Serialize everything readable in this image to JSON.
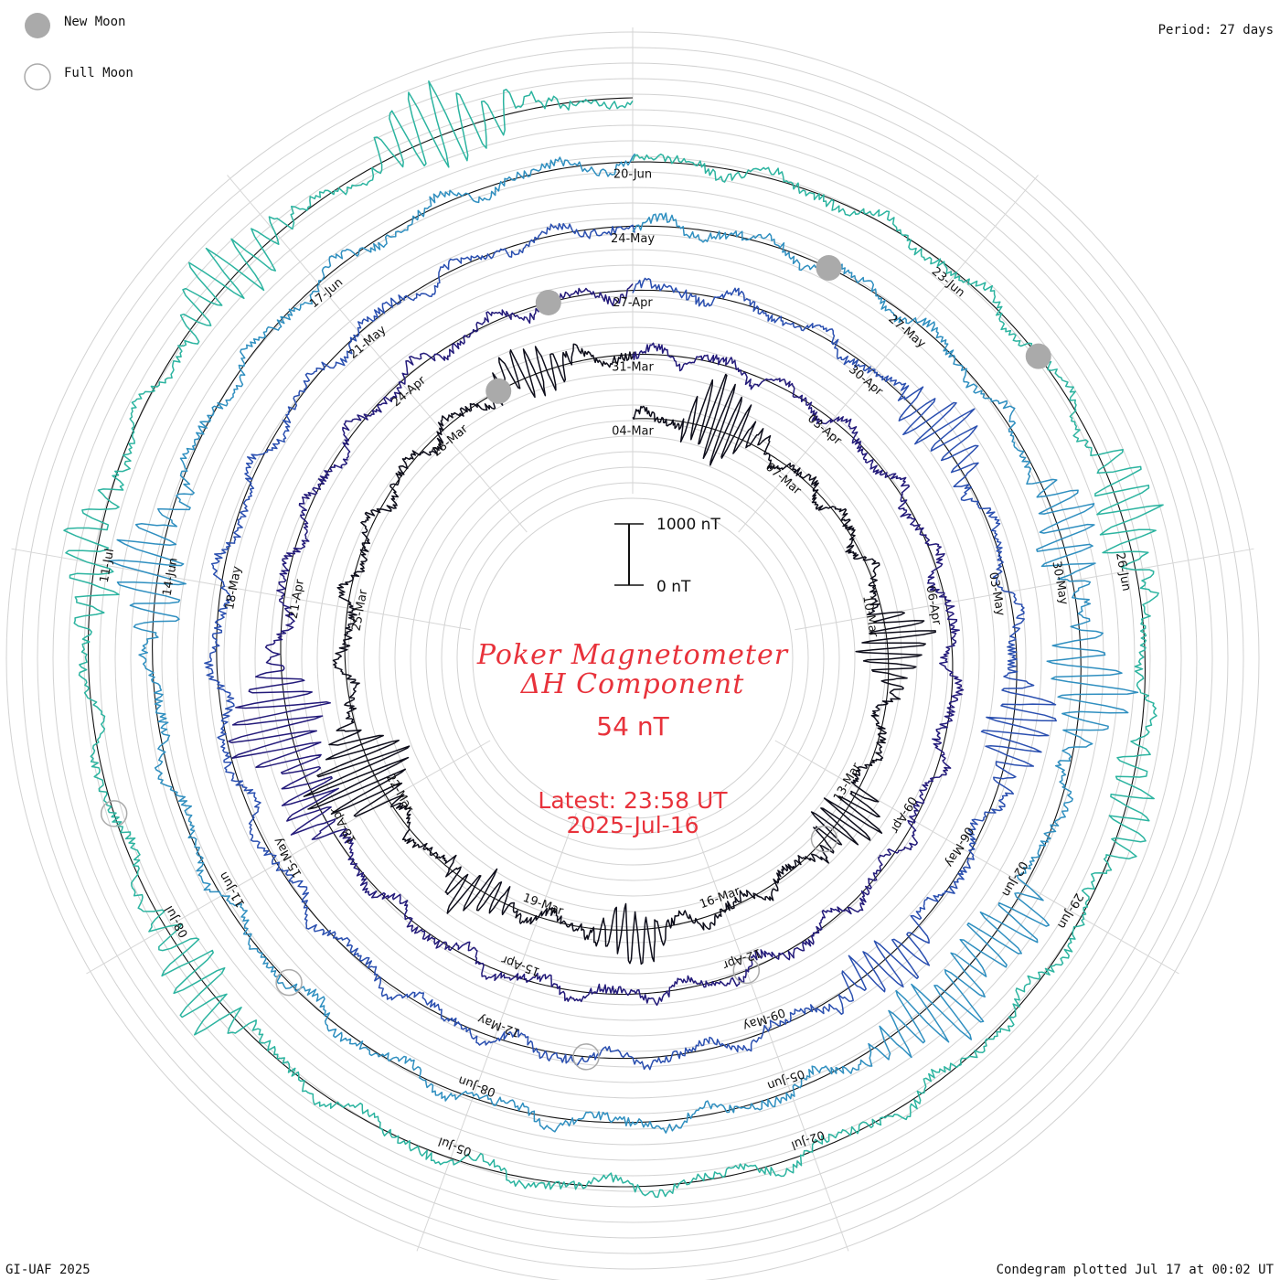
{
  "legend": {
    "new_moon_label": "New Moon",
    "full_moon_label": "Full Moon",
    "new_moon_color": "#aaaaaa",
    "full_moon_color": "#aaaaaa"
  },
  "period_label": "Period: 27 days",
  "footer": {
    "left": "GI-UAF 2025",
    "right": "Condegram plotted Jul 17 at 00:02 UT"
  },
  "center": {
    "title_line1": "Poker Magnetometer",
    "title_line2": "ΔH Component",
    "current_value": "54 nT",
    "latest_time": "Latest: 23:58 UT",
    "latest_date": "2025-Jul-16",
    "scale_top_label": "1000 nT",
    "scale_bottom_label": "0 nT",
    "text_color": "#e8323b"
  },
  "chart_data": {
    "type": "line",
    "subtype": "spiral condegram",
    "period_days": 27,
    "x_range": [
      "2025-03-04",
      "2025-07-16"
    ],
    "y_unit": "nT",
    "scale_reference": [
      0,
      1000
    ],
    "series_colors": [
      "#0d0d1a",
      "#231a7a",
      "#2a4fb0",
      "#2f8fc0",
      "#2cb4a0",
      "#3bbf6a",
      "#8cc33a",
      "#bcb31f",
      "#c9a21d",
      "#c8741d",
      "#c0431d",
      "#b01a14"
    ],
    "date_labels": [
      {
        "text": "04-Mar",
        "day": 0
      },
      {
        "text": "07-Mar",
        "day": 3
      },
      {
        "text": "10-Mar",
        "day": 6
      },
      {
        "text": "13-Mar",
        "day": 9
      },
      {
        "text": "16-Mar",
        "day": 12
      },
      {
        "text": "19-Mar",
        "day": 15
      },
      {
        "text": "22-Mar",
        "day": 18
      },
      {
        "text": "25-Mar",
        "day": 21
      },
      {
        "text": "28-Mar",
        "day": 24
      },
      {
        "text": "31-Mar",
        "day": 27
      },
      {
        "text": "03-Apr",
        "day": 30
      },
      {
        "text": "06-Apr",
        "day": 33
      },
      {
        "text": "09-Apr",
        "day": 36
      },
      {
        "text": "12-Apr",
        "day": 39
      },
      {
        "text": "15-Apr",
        "day": 42
      },
      {
        "text": "18-Apr",
        "day": 45
      },
      {
        "text": "21-Apr",
        "day": 48
      },
      {
        "text": "24-Apr",
        "day": 51
      },
      {
        "text": "27-Apr",
        "day": 54
      },
      {
        "text": "30-Apr",
        "day": 57
      },
      {
        "text": "03-May",
        "day": 60
      },
      {
        "text": "06-May",
        "day": 63
      },
      {
        "text": "09-May",
        "day": 66
      },
      {
        "text": "12-May",
        "day": 69
      },
      {
        "text": "15-May",
        "day": 72
      },
      {
        "text": "18-May",
        "day": 75
      },
      {
        "text": "21-May",
        "day": 78
      },
      {
        "text": "24-May",
        "day": 81
      },
      {
        "text": "27-May",
        "day": 84
      },
      {
        "text": "30-May",
        "day": 87
      },
      {
        "text": "02-Jun",
        "day": 90
      },
      {
        "text": "05-Jun",
        "day": 93
      },
      {
        "text": "08-Jun",
        "day": 96
      },
      {
        "text": "11-Jun",
        "day": 99
      },
      {
        "text": "14-Jun",
        "day": 102
      },
      {
        "text": "17-Jun",
        "day": 105
      },
      {
        "text": "20-Jun",
        "day": 108
      },
      {
        "text": "23-Jun",
        "day": 111
      },
      {
        "text": "26-Jun",
        "day": 114
      },
      {
        "text": "29-Jun",
        "day": 117
      },
      {
        "text": "02-Jul",
        "day": 120
      },
      {
        "text": "05-Jul",
        "day": 123
      },
      {
        "text": "08-Jul",
        "day": 126
      },
      {
        "text": "11-Jul",
        "day": 129
      }
    ],
    "new_moon_days": [
      25,
      53,
      83,
      112
    ],
    "full_moon_days": [
      10,
      39,
      68,
      98,
      127
    ],
    "baseline_approx_nT": 0,
    "disturbance_events": [
      {
        "day": 1.5,
        "magnitude_nT": 700
      },
      {
        "day": 6.5,
        "magnitude_nT": 600
      },
      {
        "day": 9.5,
        "magnitude_nT": 500
      },
      {
        "day": 13.5,
        "magnitude_nT": 450
      },
      {
        "day": 16,
        "magnitude_nT": 400
      },
      {
        "day": 18.5,
        "magnitude_nT": 900
      },
      {
        "day": 25.5,
        "magnitude_nT": 400
      },
      {
        "day": 45.5,
        "magnitude_nT": 450
      },
      {
        "day": 46.5,
        "magnitude_nT": 800
      },
      {
        "day": 58,
        "magnitude_nT": 500
      },
      {
        "day": 61.5,
        "magnitude_nT": 550
      },
      {
        "day": 64.5,
        "magnitude_nT": 450
      },
      {
        "day": 86.5,
        "magnitude_nT": 500
      },
      {
        "day": 88,
        "magnitude_nT": 650
      },
      {
        "day": 90.5,
        "magnitude_nT": 500
      },
      {
        "day": 91.5,
        "magnitude_nT": 550
      },
      {
        "day": 102,
        "magnitude_nT": 600
      },
      {
        "day": 113.5,
        "magnitude_nT": 500
      },
      {
        "day": 116,
        "magnitude_nT": 350
      },
      {
        "day": 125.5,
        "magnitude_nT": 500
      },
      {
        "day": 129,
        "magnitude_nT": 400
      },
      {
        "day": 131.5,
        "magnitude_nT": 500
      },
      {
        "day": 133.5,
        "magnitude_nT": 650
      }
    ]
  }
}
